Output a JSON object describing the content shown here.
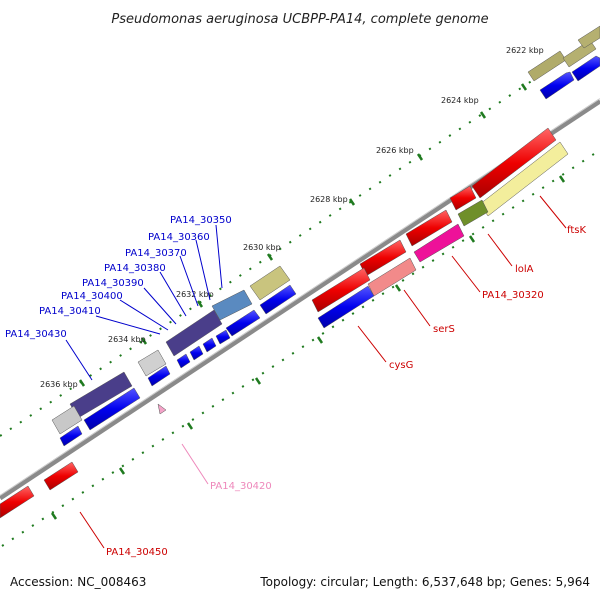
{
  "title": "Pseudomonas aeruginosa UCBPP-PA14, complete genome",
  "footer": {
    "accession": "Accession: NC_008463",
    "summary": "Topology: circular; Length: 6,537,648 bp; Genes: 5,964"
  },
  "colors": {
    "backbone": "#8a8a8a",
    "tick": "#1f7a1f",
    "label_blue": "#0000cc",
    "label_red": "#cc0000",
    "label_pink": "#ee88bb"
  },
  "ticks": [
    {
      "label": "2622 kbp",
      "pos": 2622
    },
    {
      "label": "2624 kbp",
      "pos": 2624
    },
    {
      "label": "2626 kbp",
      "pos": 2626
    },
    {
      "label": "2628 kbp",
      "pos": 2628
    },
    {
      "label": "2630 kbp",
      "pos": 2630
    },
    {
      "label": "2632 kbp",
      "pos": 2632
    },
    {
      "label": "2634 kbp",
      "pos": 2634
    },
    {
      "label": "2636 kbp",
      "pos": 2636
    }
  ],
  "labels_left": [
    {
      "name": "PA14_30350"
    },
    {
      "name": "PA14_30360"
    },
    {
      "name": "PA14_30370"
    },
    {
      "name": "PA14_30380"
    },
    {
      "name": "PA14_30390"
    },
    {
      "name": "PA14_30400"
    },
    {
      "name": "PA14_30410"
    },
    {
      "name": "PA14_30430"
    }
  ],
  "labels_right": [
    {
      "name": "ftsK"
    },
    {
      "name": "lolA"
    },
    {
      "name": "PA14_30320"
    },
    {
      "name": "serS"
    },
    {
      "name": "cysG"
    },
    {
      "name": "PA14_30420"
    },
    {
      "name": "PA14_30450"
    }
  ]
}
